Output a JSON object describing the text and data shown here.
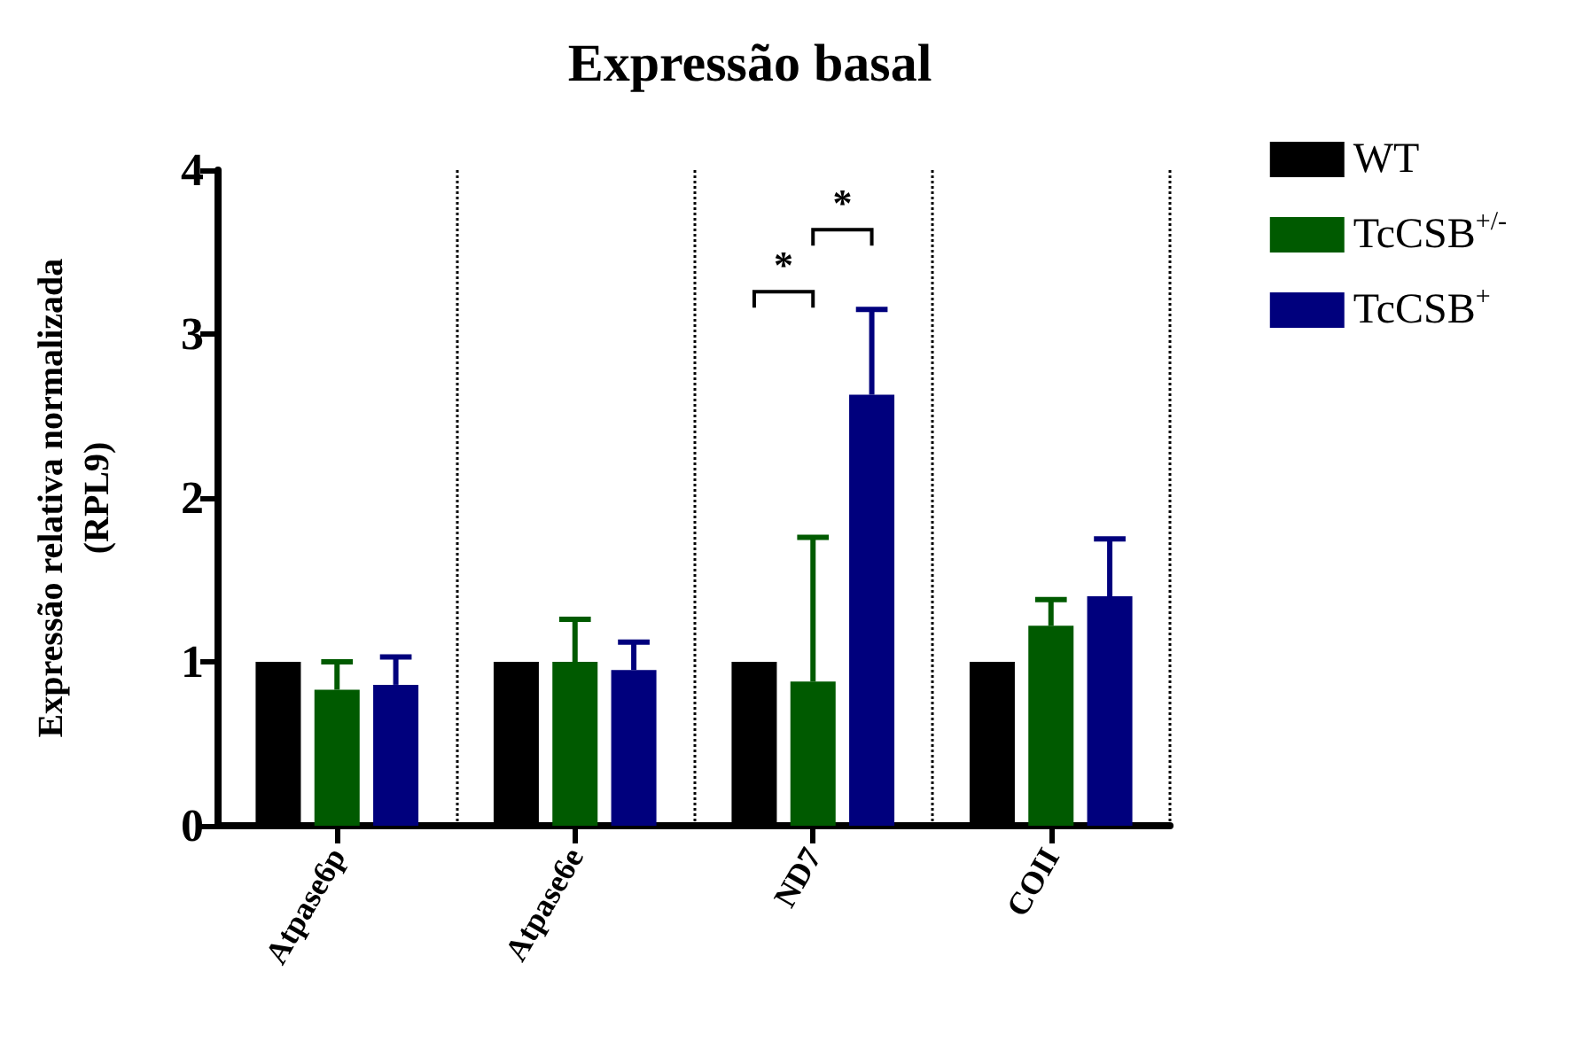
{
  "chart_data": {
    "type": "bar",
    "title": "Expressão basal",
    "ylabel": "Expressão relativa normalizada\n(RPL9)",
    "categories": [
      "Atpase6p",
      "Atpase6e",
      "ND7",
      "COII"
    ],
    "series": [
      {
        "name": "WT",
        "color": "#000000",
        "values": [
          1,
          1,
          1,
          1
        ],
        "errors": [
          null,
          null,
          null,
          null
        ]
      },
      {
        "name": "TcCSB$^{+/-}$",
        "color": "#005a00",
        "values": [
          0.83,
          1.0,
          0.88,
          1.22
        ],
        "errors": [
          [
            0.83,
            1.0
          ],
          [
            1.0,
            1.26
          ],
          [
            0.88,
            1.76
          ],
          [
            1.22,
            1.38
          ]
        ]
      },
      {
        "name": "TcCSB$^{+}$",
        "color": "#00007d",
        "values": [
          0.86,
          0.95,
          2.63,
          1.4
        ],
        "errors": [
          [
            0.86,
            1.03
          ],
          [
            0.95,
            1.12
          ],
          [
            2.63,
            3.15
          ],
          [
            1.4,
            1.75
          ]
        ]
      }
    ],
    "ylim": [
      0,
      4
    ],
    "yticks": [
      0,
      1,
      2,
      3,
      4
    ],
    "grid": "x",
    "legend": "top right",
    "annotations": [
      "*",
      "*"
    ]
  }
}
